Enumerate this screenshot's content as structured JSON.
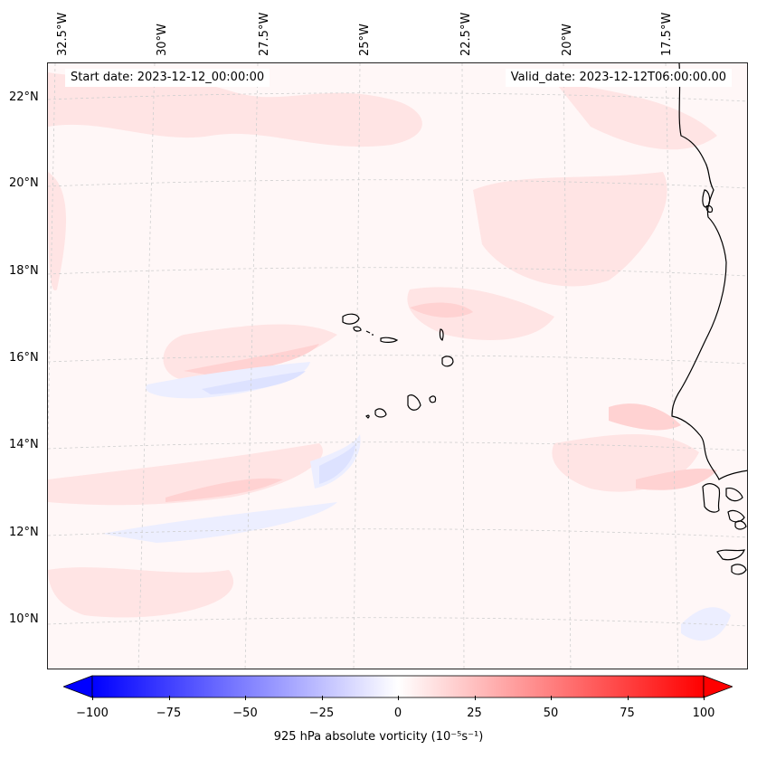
{
  "map": {
    "lon_labels": [
      "32.5°W",
      "30°W",
      "27.5°W",
      "25°W",
      "22.5°W",
      "20°W",
      "17.5°W"
    ],
    "lat_labels": [
      "22°N",
      "20°N",
      "18°N",
      "16°N",
      "14°N",
      "12°N",
      "10°N"
    ],
    "start_date": "Start date: 2023-12-12_00:00:00",
    "valid_date": "Valid_date: 2023-12-12T06:00:00.00",
    "colors": {
      "land_outline": "#000000",
      "background_field": "#fff7f7",
      "weak_positive": "#ffe3e3",
      "moderate_positive": "#ffd0d0",
      "weak_negative": "#eef0ff",
      "moderate_negative": "#dfe3ff",
      "gridline": "#c8c8c8"
    }
  },
  "colorbar": {
    "label": "925 hPa absolute vorticity (10⁻⁵s⁻¹)",
    "ticks": [
      "−100",
      "−75",
      "−50",
      "−25",
      "0",
      "25",
      "50",
      "75",
      "100"
    ],
    "min": -100,
    "max": 100,
    "color_min": "#0000ff",
    "color_mid": "#ffffff",
    "color_max": "#ff0000"
  }
}
